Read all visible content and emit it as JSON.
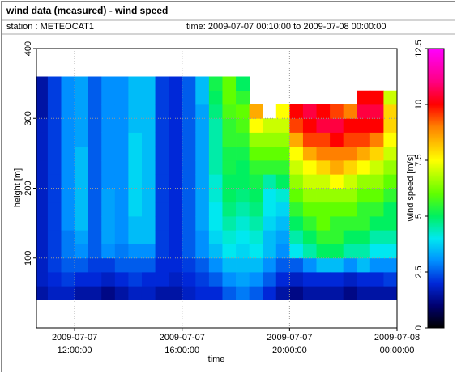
{
  "chart_data": {
    "type": "heatmap",
    "title": "wind data (measured) - wind speed",
    "station_label": "station : METEOCAT1",
    "time_range": "time: 2009-07-07 00:10:00 to 2009-07-08 00:00:00",
    "x_label": "time",
    "y_label": "height [m]",
    "colorbar_label": "wind speed [m/s]",
    "xlim": [
      10.58,
      24
    ],
    "xticks": [
      {
        "value": 12,
        "label": "2009-07-07 12:00:00"
      },
      {
        "value": 16,
        "label": "2009-07-07 16:00:00"
      },
      {
        "value": 20,
        "label": "2009-07-07 20:00:00"
      },
      {
        "value": 24,
        "label": "2009-07-08 00:00:00"
      }
    ],
    "ylim": [
      0,
      400
    ],
    "yticks": [
      100,
      200,
      300,
      400
    ],
    "clim": [
      0,
      12.5
    ],
    "cticks": [
      0,
      2.5,
      5,
      7.5,
      10,
      12.5
    ],
    "grid": true,
    "cell_width": 0.5,
    "cell_height": 20,
    "colorscale": [
      {
        "value": 0,
        "color": "#000000"
      },
      {
        "value": 1,
        "color": "#000070"
      },
      {
        "value": 2,
        "color": "#0028d8"
      },
      {
        "value": 3,
        "color": "#0090ff"
      },
      {
        "value": 4,
        "color": "#00e8f0"
      },
      {
        "value": 5,
        "color": "#00f060"
      },
      {
        "value": 6,
        "color": "#60ff00"
      },
      {
        "value": 7.5,
        "color": "#ffff00"
      },
      {
        "value": 9,
        "color": "#ff8000"
      },
      {
        "value": 10,
        "color": "#ff0000"
      },
      {
        "value": 11,
        "color": "#ff0080"
      },
      {
        "value": 12.5,
        "color": "#ff00ff"
      }
    ],
    "x": [
      10.75,
      11.25,
      11.75,
      12.25,
      12.75,
      13.25,
      13.75,
      14.25,
      14.75,
      15.25,
      15.75,
      16.25,
      16.75,
      17.25,
      17.75,
      18.25,
      18.75,
      19.25,
      19.75,
      20.25,
      20.75,
      21.25,
      21.75,
      22.25,
      22.75,
      23.25,
      23.75
    ],
    "y": [
      50,
      70,
      90,
      110,
      130,
      150,
      170,
      190,
      210,
      230,
      250,
      270,
      290,
      310,
      330,
      350
    ],
    "values": [
      [
        1.5,
        1.8,
        1.8,
        1.8,
        1.8,
        1.8,
        1.8,
        1.8,
        1.8,
        1.8,
        1.8,
        1.8,
        1.8,
        1.5,
        1.5,
        1.5
      ],
      [
        1.8,
        2,
        2.2,
        2.2,
        2.2,
        2.2,
        2.2,
        2.2,
        2.2,
        2.2,
        2.2,
        2.2,
        2.2,
        2.2,
        2.2,
        2.2
      ],
      [
        1.8,
        2.2,
        2.5,
        2.8,
        2.8,
        3,
        3,
        3,
        3,
        3,
        3,
        3,
        3,
        3,
        3,
        3
      ],
      [
        1.5,
        2,
        2.5,
        3,
        3.2,
        3.5,
        3.5,
        3.5,
        3.5,
        3.5,
        3.5,
        3.2,
        3.2,
        3.2,
        3.2,
        3.2
      ],
      [
        1.5,
        2,
        2.2,
        2.5,
        2.5,
        2.5,
        2.5,
        2.5,
        2.5,
        2.5,
        2.5,
        2.5,
        2.5,
        2.5,
        2.5,
        2.5
      ],
      [
        1.2,
        1.8,
        2.2,
        3,
        3.2,
        3.2,
        3.2,
        3.2,
        3,
        3,
        3,
        3,
        3,
        3,
        3,
        3
      ],
      [
        1.5,
        2,
        2.5,
        2.8,
        3,
        3,
        3,
        3,
        3,
        3,
        3,
        3,
        3,
        3,
        3,
        3
      ],
      [
        1.8,
        2.2,
        2.5,
        3,
        3.5,
        3.5,
        3.8,
        3.8,
        3.8,
        3.8,
        3.8,
        3.8,
        3.5,
        3.5,
        3.5,
        3.5
      ],
      [
        1.8,
        2,
        2.5,
        3,
        3.5,
        3.5,
        3.5,
        3.5,
        3.5,
        3.5,
        3.5,
        3.5,
        3.5,
        3.5,
        3.5,
        3.5
      ],
      [
        1.5,
        2,
        2,
        2.2,
        2.2,
        2.2,
        2.2,
        2.2,
        2.2,
        2.2,
        2.2,
        2.2,
        2.2,
        2.2,
        2.2,
        2.2
      ],
      [
        1.5,
        1.8,
        2,
        2,
        2,
        2,
        2,
        2,
        2,
        2,
        2,
        2,
        2,
        2,
        2,
        2
      ],
      [
        1.8,
        2,
        2.2,
        2.5,
        2.5,
        2.5,
        2.5,
        2.5,
        2.5,
        2.5,
        2.5,
        2.5,
        2.5,
        2.5,
        2.5,
        2.5
      ],
      [
        2,
        2.2,
        2.5,
        3,
        3,
        3.2,
        3.2,
        3.2,
        3.2,
        3.2,
        3.2,
        3.2,
        3.2,
        3.2,
        3.5,
        3.5
      ],
      [
        2,
        2.5,
        3,
        3.5,
        3.8,
        4,
        4,
        4.2,
        4.2,
        4.5,
        4.5,
        4.5,
        4.5,
        4.8,
        5,
        5.2
      ],
      [
        2.5,
        3,
        3.5,
        4,
        4.2,
        4.5,
        4.8,
        5,
        5,
        5.2,
        5.2,
        5.5,
        5.5,
        5.8,
        6,
        6
      ],
      [
        2.8,
        3.2,
        3.5,
        3.8,
        4,
        4.2,
        4.5,
        4.8,
        5,
        5,
        5.2,
        5.5,
        5.8,
        6,
        5.5,
        5
      ],
      [
        2.5,
        3,
        3.5,
        4,
        4.2,
        4.5,
        4.8,
        5,
        5.2,
        5.5,
        6,
        6.5,
        7.5,
        8.5,
        null,
        null
      ],
      [
        2,
        2.5,
        3,
        3.5,
        3.5,
        3.8,
        4,
        4,
        4.5,
        5.5,
        6,
        6.5,
        7,
        null,
        null,
        null
      ],
      [
        1.5,
        2,
        2.5,
        3,
        3.2,
        3.5,
        3.8,
        4.2,
        5,
        5.5,
        6,
        6.5,
        7,
        7.5,
        null,
        null
      ],
      [
        1.2,
        1.8,
        2.5,
        4,
        4.5,
        5,
        5.5,
        6,
        6.5,
        7,
        7.5,
        8.5,
        9.5,
        10,
        null,
        null
      ],
      [
        1.5,
        2,
        3,
        4.5,
        5,
        5.5,
        6,
        6.5,
        7,
        7.5,
        8.5,
        9.5,
        10,
        10.5,
        null,
        null
      ],
      [
        1.5,
        2,
        3.5,
        5,
        5.5,
        6,
        6,
        6.5,
        7,
        8,
        9,
        9.5,
        10.5,
        10,
        null,
        null
      ],
      [
        1.5,
        2,
        3.5,
        5,
        5.5,
        5.5,
        6,
        6.5,
        7.5,
        8.5,
        9,
        10,
        10.5,
        9.5,
        null,
        null
      ],
      [
        1.2,
        1.8,
        3,
        4.5,
        5,
        5.5,
        6,
        6.5,
        7,
        8,
        9,
        9.5,
        10,
        9,
        null,
        null
      ],
      [
        1.5,
        2,
        3.5,
        4.5,
        5,
        5.5,
        5.5,
        6,
        6.5,
        7.5,
        8.5,
        9.5,
        10,
        10.5,
        10,
        null
      ],
      [
        1.5,
        2,
        3,
        4,
        4.5,
        5,
        5.5,
        6,
        6.5,
        7,
        8,
        9,
        10,
        10.5,
        10,
        null
      ],
      [
        1.5,
        2.2,
        3,
        4,
        4.5,
        5,
        5,
        5.5,
        6,
        6.5,
        7,
        7.5,
        8,
        8,
        7,
        null
      ]
    ]
  }
}
